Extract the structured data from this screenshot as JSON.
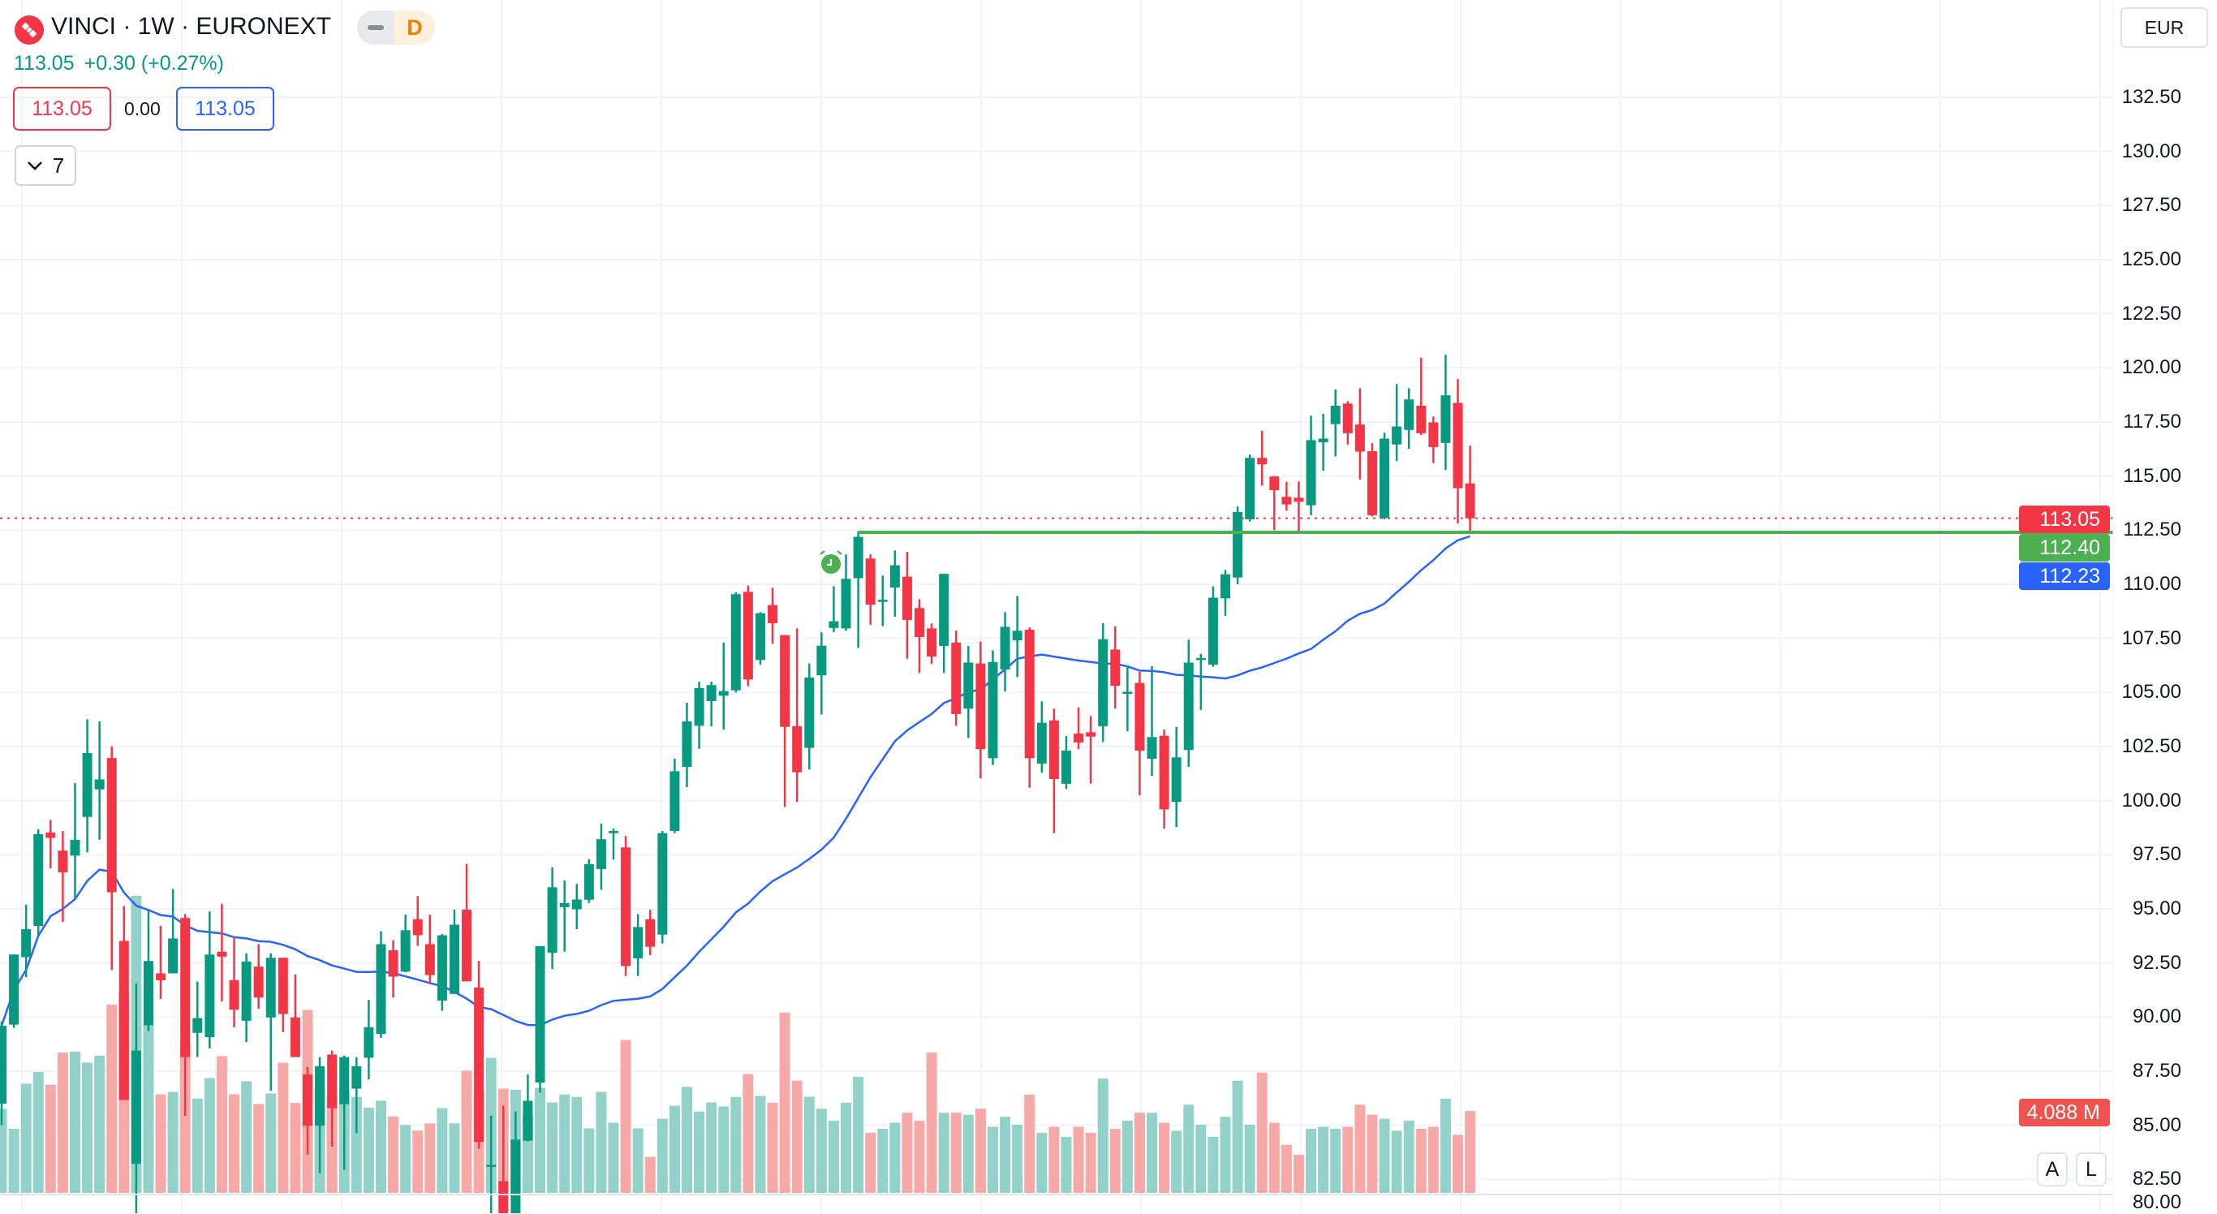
{
  "header": {
    "title": "VINCI · 1W · EURONEXT",
    "market_status_letter": "D",
    "last_price": "113.05",
    "change": "+0.30 (+0.27%)",
    "sell_price": "113.05",
    "spread": "0.00",
    "buy_price": "113.05",
    "indicators_count": "7"
  },
  "currency_button": "EUR",
  "scale_buttons": {
    "auto": "A",
    "log": "L"
  },
  "price_labels": {
    "last": {
      "text": "113.05",
      "value": 113.05,
      "color": "#f23645"
    },
    "alert_line": {
      "text": "112.40",
      "value": 112.4,
      "color": "#4caf50"
    },
    "moving_average": {
      "text": "112.23",
      "value": 112.23,
      "color": "#2962ff"
    },
    "volume": {
      "text": "4.088 M",
      "color": "#ef5350"
    }
  },
  "colors": {
    "up": "#089981",
    "down": "#f23645",
    "vol_up": "#92d2c8",
    "vol_down": "#f7a9a7",
    "ma": "#2962ff",
    "grid": "#f0f3fa"
  },
  "chart_data": {
    "type": "candlestick",
    "title": "VINCI · 1W · EURONEXT",
    "interval": "1W",
    "ylim": [
      82.7,
      137.0
    ],
    "y_ticks": [
      "132.50",
      "130.00",
      "127.50",
      "125.00",
      "122.50",
      "120.00",
      "117.50",
      "115.00",
      "112.50",
      "110.00",
      "107.50",
      "105.00",
      "102.50",
      "100.00",
      "97.50",
      "95.00",
      "92.50",
      "90.00",
      "87.50",
      "85.00",
      "82.50",
      "80.00"
    ],
    "ma_period": 30,
    "alert_level": 112.4,
    "alert_start_index": 70,
    "ohlc": [
      [
        86.0,
        89.8,
        85.0,
        89.6
      ],
      [
        89.65,
        92.89,
        89.5,
        92.89
      ],
      [
        92.77,
        95.19,
        91.85,
        94.06
      ],
      [
        94.21,
        98.68,
        93.78,
        98.45
      ],
      [
        98.53,
        99.11,
        96.87,
        98.28
      ],
      [
        97.69,
        98.6,
        94.39,
        96.69
      ],
      [
        97.46,
        100.82,
        95.47,
        98.19
      ],
      [
        99.25,
        103.76,
        97.61,
        102.2
      ],
      [
        100.52,
        103.66,
        98.19,
        100.98
      ],
      [
        101.97,
        102.51,
        92.17,
        95.77
      ],
      [
        93.52,
        95.13,
        86.17,
        86.17
      ],
      [
        83.22,
        91.56,
        80.5,
        88.45
      ],
      [
        89.62,
        94.93,
        89.34,
        92.59
      ],
      [
        92.02,
        94.21,
        90.84,
        91.7
      ],
      [
        92.02,
        95.92,
        92.02,
        93.63
      ],
      [
        94.58,
        94.76,
        85.44,
        88.15
      ],
      [
        89.27,
        91.64,
        88.15,
        89.95
      ],
      [
        89.07,
        94.88,
        88.55,
        92.89
      ],
      [
        93.02,
        95.24,
        90.72,
        92.79
      ],
      [
        91.71,
        93.7,
        89.53,
        90.34
      ],
      [
        89.83,
        92.94,
        88.85,
        92.56
      ],
      [
        92.33,
        93.37,
        90.38,
        90.9
      ],
      [
        89.98,
        92.94,
        86.59,
        92.74
      ],
      [
        92.74,
        92.74,
        89.3,
        90.14
      ],
      [
        89.98,
        91.97,
        88.15,
        88.15
      ],
      [
        87.35,
        87.69,
        83.65,
        84.98
      ],
      [
        84.98,
        88.15,
        82.79,
        87.73
      ],
      [
        88.27,
        88.45,
        84.01,
        85.79
      ],
      [
        85.97,
        88.22,
        82.94,
        88.15
      ],
      [
        86.69,
        88.15,
        84.63,
        87.73
      ],
      [
        88.12,
        90.8,
        87.12,
        89.53
      ],
      [
        89.22,
        93.97,
        89.04,
        93.37
      ],
      [
        93.09,
        93.55,
        90.9,
        91.87
      ],
      [
        92.1,
        94.73,
        92.07,
        94.01
      ],
      [
        94.52,
        95.59,
        93.29,
        93.78
      ],
      [
        93.37,
        94.73,
        91.52,
        91.94
      ],
      [
        90.76,
        93.84,
        90.29,
        93.78
      ],
      [
        91.07,
        94.96,
        91.07,
        94.27
      ],
      [
        94.96,
        97.07,
        91.65,
        91.65
      ],
      [
        91.36,
        92.59,
        83.92,
        84.23
      ],
      [
        83.12,
        85.45,
        80.5,
        83.17
      ],
      [
        82.42,
        85.91,
        80.0,
        80.3
      ],
      [
        80.5,
        85.64,
        80.2,
        84.34
      ],
      [
        84.29,
        87.35,
        84.26,
        86.13
      ],
      [
        86.97,
        93.28,
        86.51,
        93.28
      ],
      [
        92.97,
        96.92,
        92.22,
        96.0
      ],
      [
        95.08,
        96.31,
        93.02,
        95.27
      ],
      [
        94.98,
        96.15,
        94.06,
        95.43
      ],
      [
        95.42,
        97.3,
        95.27,
        97.07
      ],
      [
        96.84,
        98.94,
        95.88,
        98.22
      ],
      [
        98.5,
        98.71,
        97.27,
        98.6
      ],
      [
        97.84,
        98.37,
        91.9,
        92.36
      ],
      [
        92.71,
        94.76,
        91.9,
        94.16
      ],
      [
        94.52,
        94.96,
        92.86,
        93.25
      ],
      [
        93.81,
        98.6,
        93.4,
        98.5
      ],
      [
        98.6,
        101.94,
        98.5,
        101.36
      ],
      [
        101.56,
        104.53,
        100.62,
        103.66
      ],
      [
        103.46,
        105.5,
        102.39,
        105.2
      ],
      [
        104.6,
        105.5,
        103.43,
        105.34
      ],
      [
        104.85,
        107.31,
        103.28,
        105.06
      ],
      [
        105.1,
        109.63,
        105.0,
        109.54
      ],
      [
        109.65,
        109.94,
        105.29,
        105.6
      ],
      [
        106.5,
        108.71,
        106.28,
        108.66
      ],
      [
        109.04,
        109.84,
        107.25,
        108.2
      ],
      [
        107.65,
        107.65,
        99.71,
        103.41
      ],
      [
        103.44,
        107.96,
        99.94,
        101.31
      ],
      [
        102.44,
        106.34,
        101.44,
        105.69
      ],
      [
        105.79,
        107.78,
        103.98,
        107.16
      ],
      [
        107.98,
        109.91,
        107.79,
        108.29
      ],
      [
        107.96,
        111.38,
        107.85,
        110.25
      ],
      [
        110.28,
        112.44,
        107.06,
        112.19
      ],
      [
        111.19,
        111.38,
        108.13,
        109.06
      ],
      [
        109.23,
        110.4,
        108.06,
        109.28
      ],
      [
        109.85,
        111.56,
        108.5,
        110.88
      ],
      [
        110.35,
        111.5,
        106.56,
        108.35
      ],
      [
        108.9,
        109.31,
        105.9,
        107.56
      ],
      [
        107.96,
        108.19,
        106.31,
        106.66
      ],
      [
        107.15,
        110.48,
        105.9,
        110.48
      ],
      [
        107.31,
        107.85,
        103.46,
        104.0
      ],
      [
        104.25,
        107.15,
        102.9,
        106.38
      ],
      [
        106.34,
        107.35,
        101.03,
        102.38
      ],
      [
        101.96,
        106.94,
        101.65,
        106.41
      ],
      [
        106.06,
        108.71,
        105.04,
        108.03
      ],
      [
        107.41,
        109.46,
        105.71,
        107.85
      ],
      [
        107.9,
        108.0,
        100.6,
        101.96
      ],
      [
        101.71,
        104.59,
        101.29,
        103.6
      ],
      [
        103.71,
        104.25,
        98.5,
        101.0
      ],
      [
        100.78,
        102.98,
        100.54,
        102.31
      ],
      [
        103.1,
        104.31,
        102.38,
        102.69
      ],
      [
        103.16,
        103.91,
        100.79,
        102.96
      ],
      [
        103.44,
        108.21,
        102.71,
        107.46
      ],
      [
        106.98,
        108.06,
        104.25,
        105.31
      ],
      [
        104.94,
        106.25,
        103.21,
        105.03
      ],
      [
        105.44,
        105.96,
        100.25,
        102.31
      ],
      [
        101.94,
        106.21,
        101.15,
        102.94
      ],
      [
        103.0,
        103.28,
        98.71,
        99.6
      ],
      [
        99.94,
        103.41,
        98.78,
        102.0
      ],
      [
        102.34,
        107.44,
        101.56,
        106.38
      ],
      [
        106.55,
        106.79,
        104.19,
        106.59
      ],
      [
        106.28,
        109.9,
        106.19,
        109.38
      ],
      [
        109.35,
        110.66,
        108.54,
        110.46
      ],
      [
        110.31,
        113.6,
        110.0,
        113.34
      ],
      [
        113.0,
        116.0,
        112.9,
        115.84
      ],
      [
        115.84,
        117.09,
        114.56,
        115.54
      ],
      [
        114.98,
        115.0,
        112.5,
        114.35
      ],
      [
        114.04,
        114.73,
        113.4,
        113.69
      ],
      [
        114.0,
        114.75,
        112.46,
        113.81
      ],
      [
        113.65,
        117.79,
        113.19,
        116.66
      ],
      [
        116.56,
        117.88,
        115.25,
        116.73
      ],
      [
        117.4,
        119.0,
        115.91,
        118.25
      ],
      [
        118.35,
        118.46,
        116.46,
        116.98
      ],
      [
        117.38,
        119.06,
        114.84,
        116.13
      ],
      [
        116.15,
        116.53,
        113.13,
        113.19
      ],
      [
        113.06,
        117.0,
        113.0,
        116.73
      ],
      [
        116.46,
        119.25,
        115.69,
        117.29
      ],
      [
        117.13,
        119.06,
        116.25,
        118.54
      ],
      [
        118.25,
        120.46,
        116.9,
        116.98
      ],
      [
        117.48,
        117.75,
        115.6,
        116.34
      ],
      [
        116.53,
        120.6,
        115.28,
        118.73
      ],
      [
        118.38,
        119.48,
        112.81,
        114.44
      ],
      [
        114.66,
        116.4,
        112.4,
        113.05
      ]
    ],
    "volume_millions": [
      4.2,
      3.2,
      5.45,
      6.03,
      5.4,
      7.0,
      7.05,
      6.5,
      6.85,
      9.4,
      10.07,
      14.83,
      8.43,
      4.92,
      5.04,
      7.43,
      4.71,
      5.73,
      6.82,
      4.92,
      5.57,
      4.43,
      4.96,
      6.5,
      4.49,
      9.13,
      5.2,
      4.79,
      5.15,
      4.79,
      4.25,
      4.6,
      3.82,
      3.39,
      3.11,
      3.47,
      4.23,
      3.47,
      6.1,
      5.04,
      6.74,
      5.2,
      5.15,
      3.88,
      5.24,
      4.51,
      4.91,
      4.79,
      3.22,
      5.04,
      3.5,
      7.63,
      3.22,
      1.8,
      3.7,
      4.35,
      5.29,
      4.06,
      4.51,
      4.31,
      4.79,
      5.93,
      4.84,
      4.5,
      9.0,
      5.6,
      4.8,
      4.2,
      3.6,
      4.5,
      5.8,
      3.0,
      3.2,
      3.5,
      4.0,
      3.6,
      7.0,
      4.0,
      4.0,
      3.9,
      4.2,
      3.3,
      3.8,
      3.4,
      4.9,
      3.0,
      3.3,
      2.8,
      3.3,
      3.0,
      5.7,
      3.2,
      3.6,
      4.0,
      4.0,
      3.5,
      3.1,
      4.4,
      3.4,
      2.8,
      3.8,
      5.6,
      3.4,
      6.0,
      3.5,
      2.4,
      1.9,
      3.2,
      3.3,
      3.2,
      3.3,
      4.4,
      3.9,
      3.7,
      3.1,
      3.6,
      3.2,
      3.3,
      4.7,
      2.9,
      4.088
    ]
  }
}
